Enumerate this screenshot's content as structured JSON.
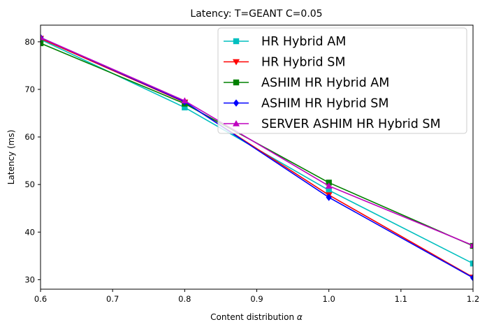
{
  "chart_data": {
    "type": "line",
    "title": "Latency: T=GEANT C=0.05",
    "xlabel": "Content distribution",
    "xlabel_symbol": "α",
    "ylabel": "Latency (ms)",
    "xlim": [
      0.6,
      1.2
    ],
    "ylim": [
      28,
      83.5
    ],
    "x_ticks": [
      0.6,
      0.7,
      0.8,
      0.9,
      1.0,
      1.1,
      1.2
    ],
    "x_tick_labels": [
      "0.6",
      "0.7",
      "0.8",
      "0.9",
      "1.0",
      "1.1",
      "1.2"
    ],
    "y_ticks": [
      30,
      40,
      50,
      60,
      70,
      80
    ],
    "y_tick_labels": [
      "30",
      "40",
      "50",
      "60",
      "70",
      "80"
    ],
    "grid": false,
    "legend_position": "top-right",
    "x": [
      0.6,
      0.8,
      1.0,
      1.2
    ],
    "series": [
      {
        "name": "HR Hybrid AM",
        "color": "#00bfbf",
        "marker": "square",
        "values": [
          80.5,
          66.2,
          48.8,
          33.4
        ]
      },
      {
        "name": "HR Hybrid SM",
        "color": "#ff0000",
        "marker": "triangle-down",
        "values": [
          80.7,
          67.3,
          47.8,
          30.5
        ]
      },
      {
        "name": "ASHIM HR Hybrid AM",
        "color": "#008000",
        "marker": "square",
        "values": [
          79.7,
          67.0,
          50.4,
          37.1
        ]
      },
      {
        "name": "ASHIM HR Hybrid SM",
        "color": "#0000ff",
        "marker": "diamond",
        "values": [
          80.9,
          67.4,
          47.3,
          30.4
        ]
      },
      {
        "name": "SERVER ASHIM HR Hybrid SM",
        "color": "#bf00bf",
        "marker": "triangle-up",
        "values": [
          80.9,
          67.6,
          49.7,
          37.2
        ]
      }
    ]
  }
}
